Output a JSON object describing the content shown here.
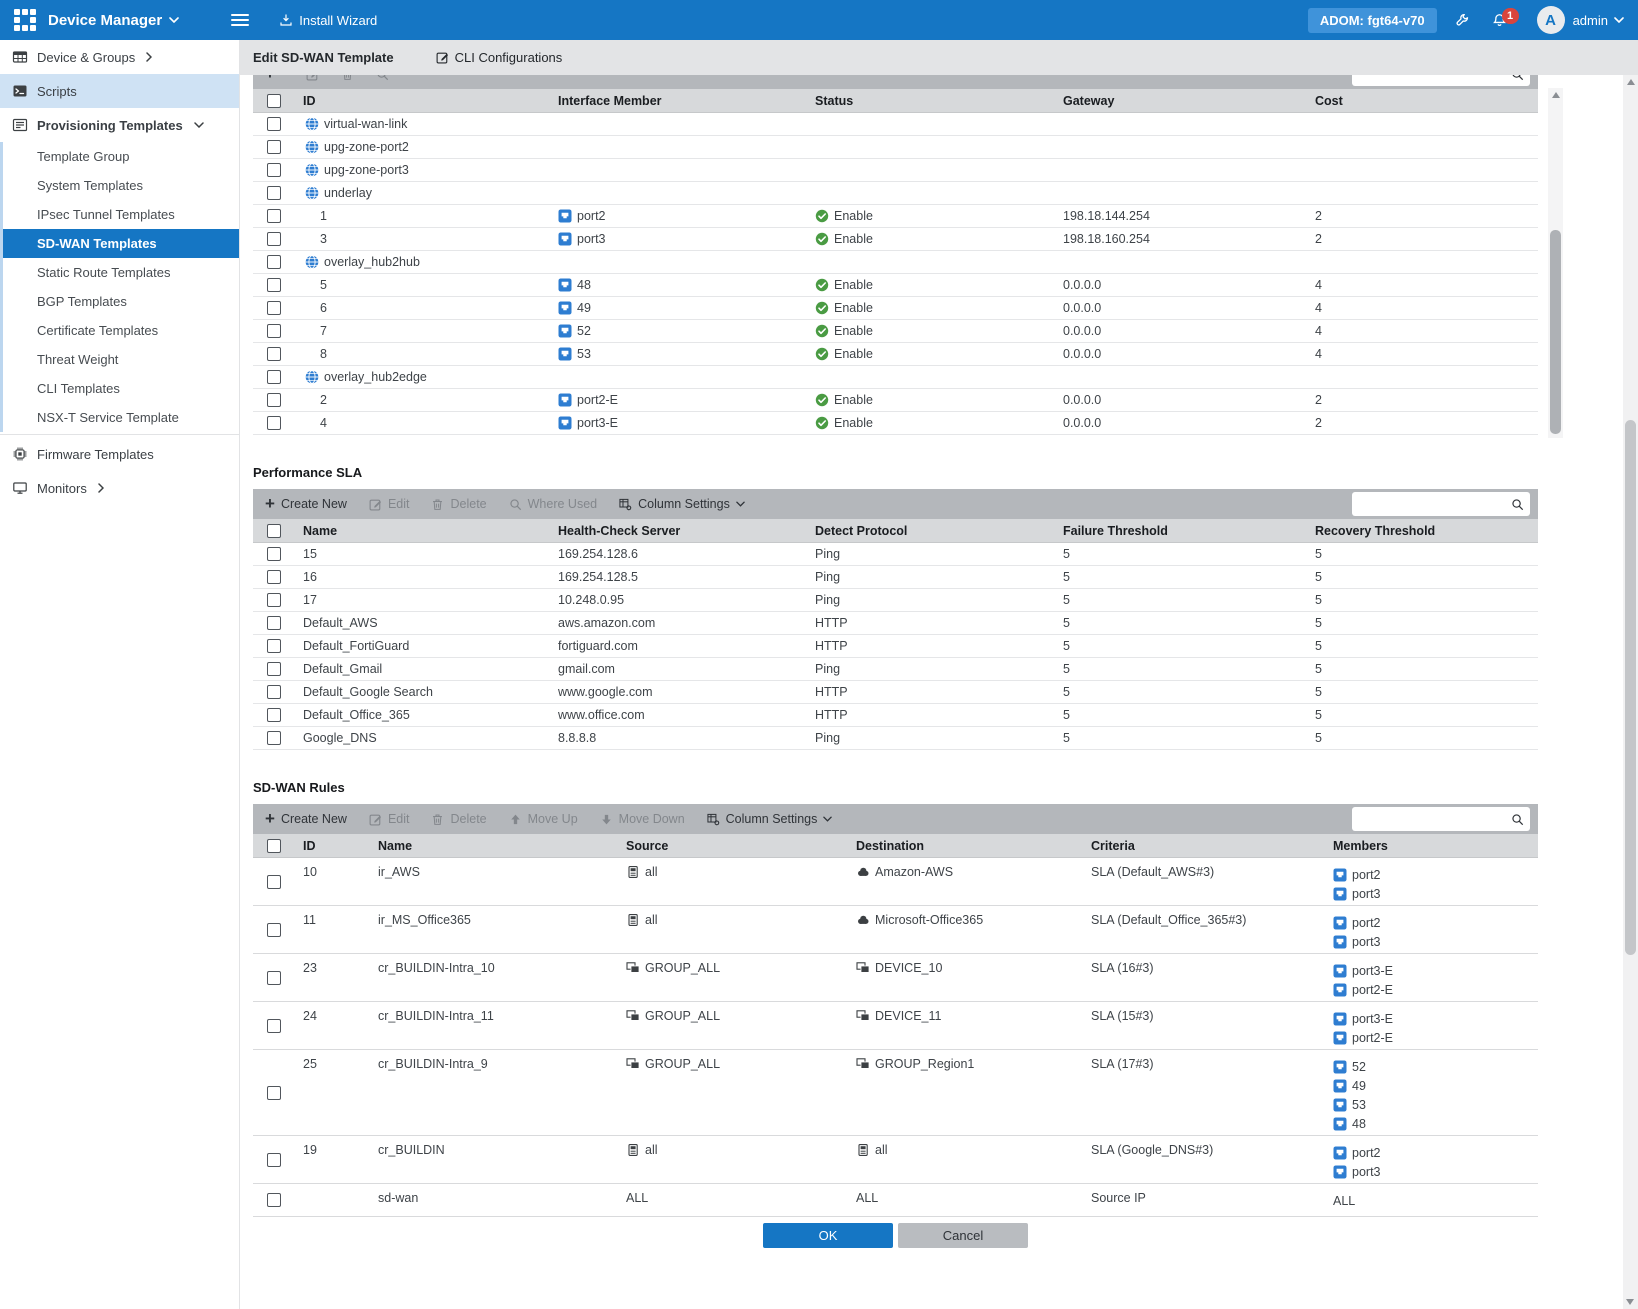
{
  "colors": {
    "brand_blue": "#1576c4",
    "adom_badge_blue": "#3f93da",
    "icon_blue": "#2e7dd1",
    "status_green": "#4a9b43",
    "notification_red": "#d9453d",
    "toolbar_gray": "#b4b7bb",
    "table_header_gray": "#d7d9db"
  },
  "header": {
    "app_title": "Device Manager",
    "install_wizard": "Install Wizard",
    "adom": "ADOM: fgt64-v70",
    "notification_count": "1",
    "avatar_letter": "A",
    "user": "admin"
  },
  "tabbar": {
    "title": "Edit SD-WAN Template",
    "cli_label": "CLI Configurations"
  },
  "sidebar": {
    "items": [
      {
        "label": "Device & Groups",
        "icon": "sb-devgroups",
        "chevron": "right"
      },
      {
        "label": "Scripts",
        "icon": "sb-scripts",
        "state": "highlighted"
      },
      {
        "label": "Provisioning Templates",
        "icon": "sb-prov",
        "chevron": "down",
        "bold": true,
        "children": [
          {
            "label": "Template Group"
          },
          {
            "label": "System Templates"
          },
          {
            "label": "IPsec Tunnel Templates"
          },
          {
            "label": "SD-WAN Templates",
            "state": "selected"
          },
          {
            "label": "Static Route Templates"
          },
          {
            "label": "BGP Templates"
          },
          {
            "label": "Certificate Templates"
          },
          {
            "label": "Threat Weight"
          },
          {
            "label": "CLI Templates"
          },
          {
            "label": "NSX-T Service Template"
          }
        ]
      },
      {
        "label": "Firmware Templates",
        "icon": "sb-firmware",
        "divider": true
      },
      {
        "label": "Monitors",
        "icon": "sb-monitors",
        "chevron": "right"
      }
    ]
  },
  "interface_table": {
    "columns": [
      "ID",
      "Interface Member",
      "Status",
      "Gateway",
      "Cost"
    ],
    "rows": [
      {
        "kind": "zone",
        "id": "virtual-wan-link"
      },
      {
        "kind": "zone",
        "id": "upg-zone-port2"
      },
      {
        "kind": "zone",
        "id": "upg-zone-port3"
      },
      {
        "kind": "zone",
        "id": "underlay"
      },
      {
        "kind": "member",
        "id": "1",
        "interface": "port2",
        "status": "Enable",
        "gateway": "198.18.144.254",
        "cost": "2"
      },
      {
        "kind": "member",
        "id": "3",
        "interface": "port3",
        "status": "Enable",
        "gateway": "198.18.160.254",
        "cost": "2"
      },
      {
        "kind": "zone",
        "id": "overlay_hub2hub"
      },
      {
        "kind": "member",
        "id": "5",
        "interface": "48",
        "status": "Enable",
        "gateway": "0.0.0.0",
        "cost": "4"
      },
      {
        "kind": "member",
        "id": "6",
        "interface": "49",
        "status": "Enable",
        "gateway": "0.0.0.0",
        "cost": "4"
      },
      {
        "kind": "member",
        "id": "7",
        "interface": "52",
        "status": "Enable",
        "gateway": "0.0.0.0",
        "cost": "4"
      },
      {
        "kind": "member",
        "id": "8",
        "interface": "53",
        "status": "Enable",
        "gateway": "0.0.0.0",
        "cost": "4"
      },
      {
        "kind": "zone",
        "id": "overlay_hub2edge"
      },
      {
        "kind": "member",
        "id": "2",
        "interface": "port2-E",
        "status": "Enable",
        "gateway": "0.0.0.0",
        "cost": "2"
      },
      {
        "kind": "member",
        "id": "4",
        "interface": "port3-E",
        "status": "Enable",
        "gateway": "0.0.0.0",
        "cost": "2"
      }
    ]
  },
  "sla": {
    "title": "Performance SLA",
    "toolbar": {
      "create": "Create New",
      "edit": "Edit",
      "delete": "Delete",
      "where_used": "Where Used",
      "column_settings": "Column Settings"
    },
    "search_value": "",
    "columns": [
      "Name",
      "Health-Check Server",
      "Detect Protocol",
      "Failure Threshold",
      "Recovery Threshold"
    ],
    "rows": [
      {
        "name": "15",
        "server": "169.254.128.6",
        "protocol": "Ping",
        "failure": "5",
        "recovery": "5"
      },
      {
        "name": "16",
        "server": "169.254.128.5",
        "protocol": "Ping",
        "failure": "5",
        "recovery": "5"
      },
      {
        "name": "17",
        "server": "10.248.0.95",
        "protocol": "Ping",
        "failure": "5",
        "recovery": "5"
      },
      {
        "name": "Default_AWS",
        "server": "aws.amazon.com",
        "protocol": "HTTP",
        "failure": "5",
        "recovery": "5"
      },
      {
        "name": "Default_FortiGuard",
        "server": "fortiguard.com",
        "protocol": "HTTP",
        "failure": "5",
        "recovery": "5"
      },
      {
        "name": "Default_Gmail",
        "server": "gmail.com",
        "protocol": "Ping",
        "failure": "5",
        "recovery": "5"
      },
      {
        "name": "Default_Google Search",
        "server": "www.google.com",
        "protocol": "HTTP",
        "failure": "5",
        "recovery": "5"
      },
      {
        "name": "Default_Office_365",
        "server": "www.office.com",
        "protocol": "HTTP",
        "failure": "5",
        "recovery": "5"
      },
      {
        "name": "Google_DNS",
        "server": "8.8.8.8",
        "protocol": "Ping",
        "failure": "5",
        "recovery": "5"
      }
    ]
  },
  "rules": {
    "title": "SD-WAN Rules",
    "toolbar": {
      "create": "Create New",
      "edit": "Edit",
      "delete": "Delete",
      "move_up": "Move Up",
      "move_down": "Move Down",
      "column_settings": "Column Settings"
    },
    "search_value": "",
    "columns": [
      "ID",
      "Name",
      "Source",
      "Destination",
      "Criteria",
      "Members"
    ],
    "rows": [
      {
        "id": "10",
        "name": "ir_AWS",
        "source": {
          "icon": "address",
          "label": "all"
        },
        "dest": {
          "icon": "inet",
          "label": "Amazon-AWS"
        },
        "criteria": "SLA (Default_AWS#3)",
        "members": [
          {
            "icon": "interface",
            "label": "port2"
          },
          {
            "icon": "interface",
            "label": "port3"
          }
        ]
      },
      {
        "id": "11",
        "name": "ir_MS_Office365",
        "source": {
          "icon": "address",
          "label": "all"
        },
        "dest": {
          "icon": "inet",
          "label": "Microsoft-Office365"
        },
        "criteria": "SLA (Default_Office_365#3)",
        "members": [
          {
            "icon": "interface",
            "label": "port2"
          },
          {
            "icon": "interface",
            "label": "port3"
          }
        ]
      },
      {
        "id": "23",
        "name": "cr_BUILDIN-Intra_10",
        "source": {
          "icon": "devgroup",
          "label": "GROUP_ALL"
        },
        "dest": {
          "icon": "devgroup",
          "label": "DEVICE_10"
        },
        "criteria": "SLA (16#3)",
        "members": [
          {
            "icon": "interface",
            "label": "port3-E"
          },
          {
            "icon": "interface",
            "label": "port2-E"
          }
        ]
      },
      {
        "id": "24",
        "name": "cr_BUILDIN-Intra_11",
        "source": {
          "icon": "devgroup",
          "label": "GROUP_ALL"
        },
        "dest": {
          "icon": "devgroup",
          "label": "DEVICE_11"
        },
        "criteria": "SLA (15#3)",
        "members": [
          {
            "icon": "interface",
            "label": "port3-E"
          },
          {
            "icon": "interface",
            "label": "port2-E"
          }
        ]
      },
      {
        "id": "25",
        "name": "cr_BUILDIN-Intra_9",
        "source": {
          "icon": "devgroup",
          "label": "GROUP_ALL"
        },
        "dest": {
          "icon": "devgroup",
          "label": "GROUP_Region1"
        },
        "criteria": "SLA (17#3)",
        "members": [
          {
            "icon": "interface",
            "label": "52"
          },
          {
            "icon": "interface",
            "label": "49"
          },
          {
            "icon": "interface",
            "label": "53"
          },
          {
            "icon": "interface",
            "label": "48"
          }
        ]
      },
      {
        "id": "19",
        "name": "cr_BUILDIN",
        "source": {
          "icon": "address",
          "label": "all"
        },
        "dest": {
          "icon": "address",
          "label": "all"
        },
        "criteria": "SLA (Google_DNS#3)",
        "members": [
          {
            "icon": "interface",
            "label": "port2"
          },
          {
            "icon": "interface",
            "label": "port3"
          }
        ]
      },
      {
        "id": "",
        "name": "sd-wan",
        "source": {
          "icon": "none",
          "label": "ALL"
        },
        "dest": {
          "icon": "none",
          "label": "ALL"
        },
        "criteria": "Source IP",
        "members": [
          {
            "icon": "none",
            "label": "ALL"
          }
        ]
      }
    ]
  },
  "footer": {
    "ok": "OK",
    "cancel": "Cancel"
  }
}
